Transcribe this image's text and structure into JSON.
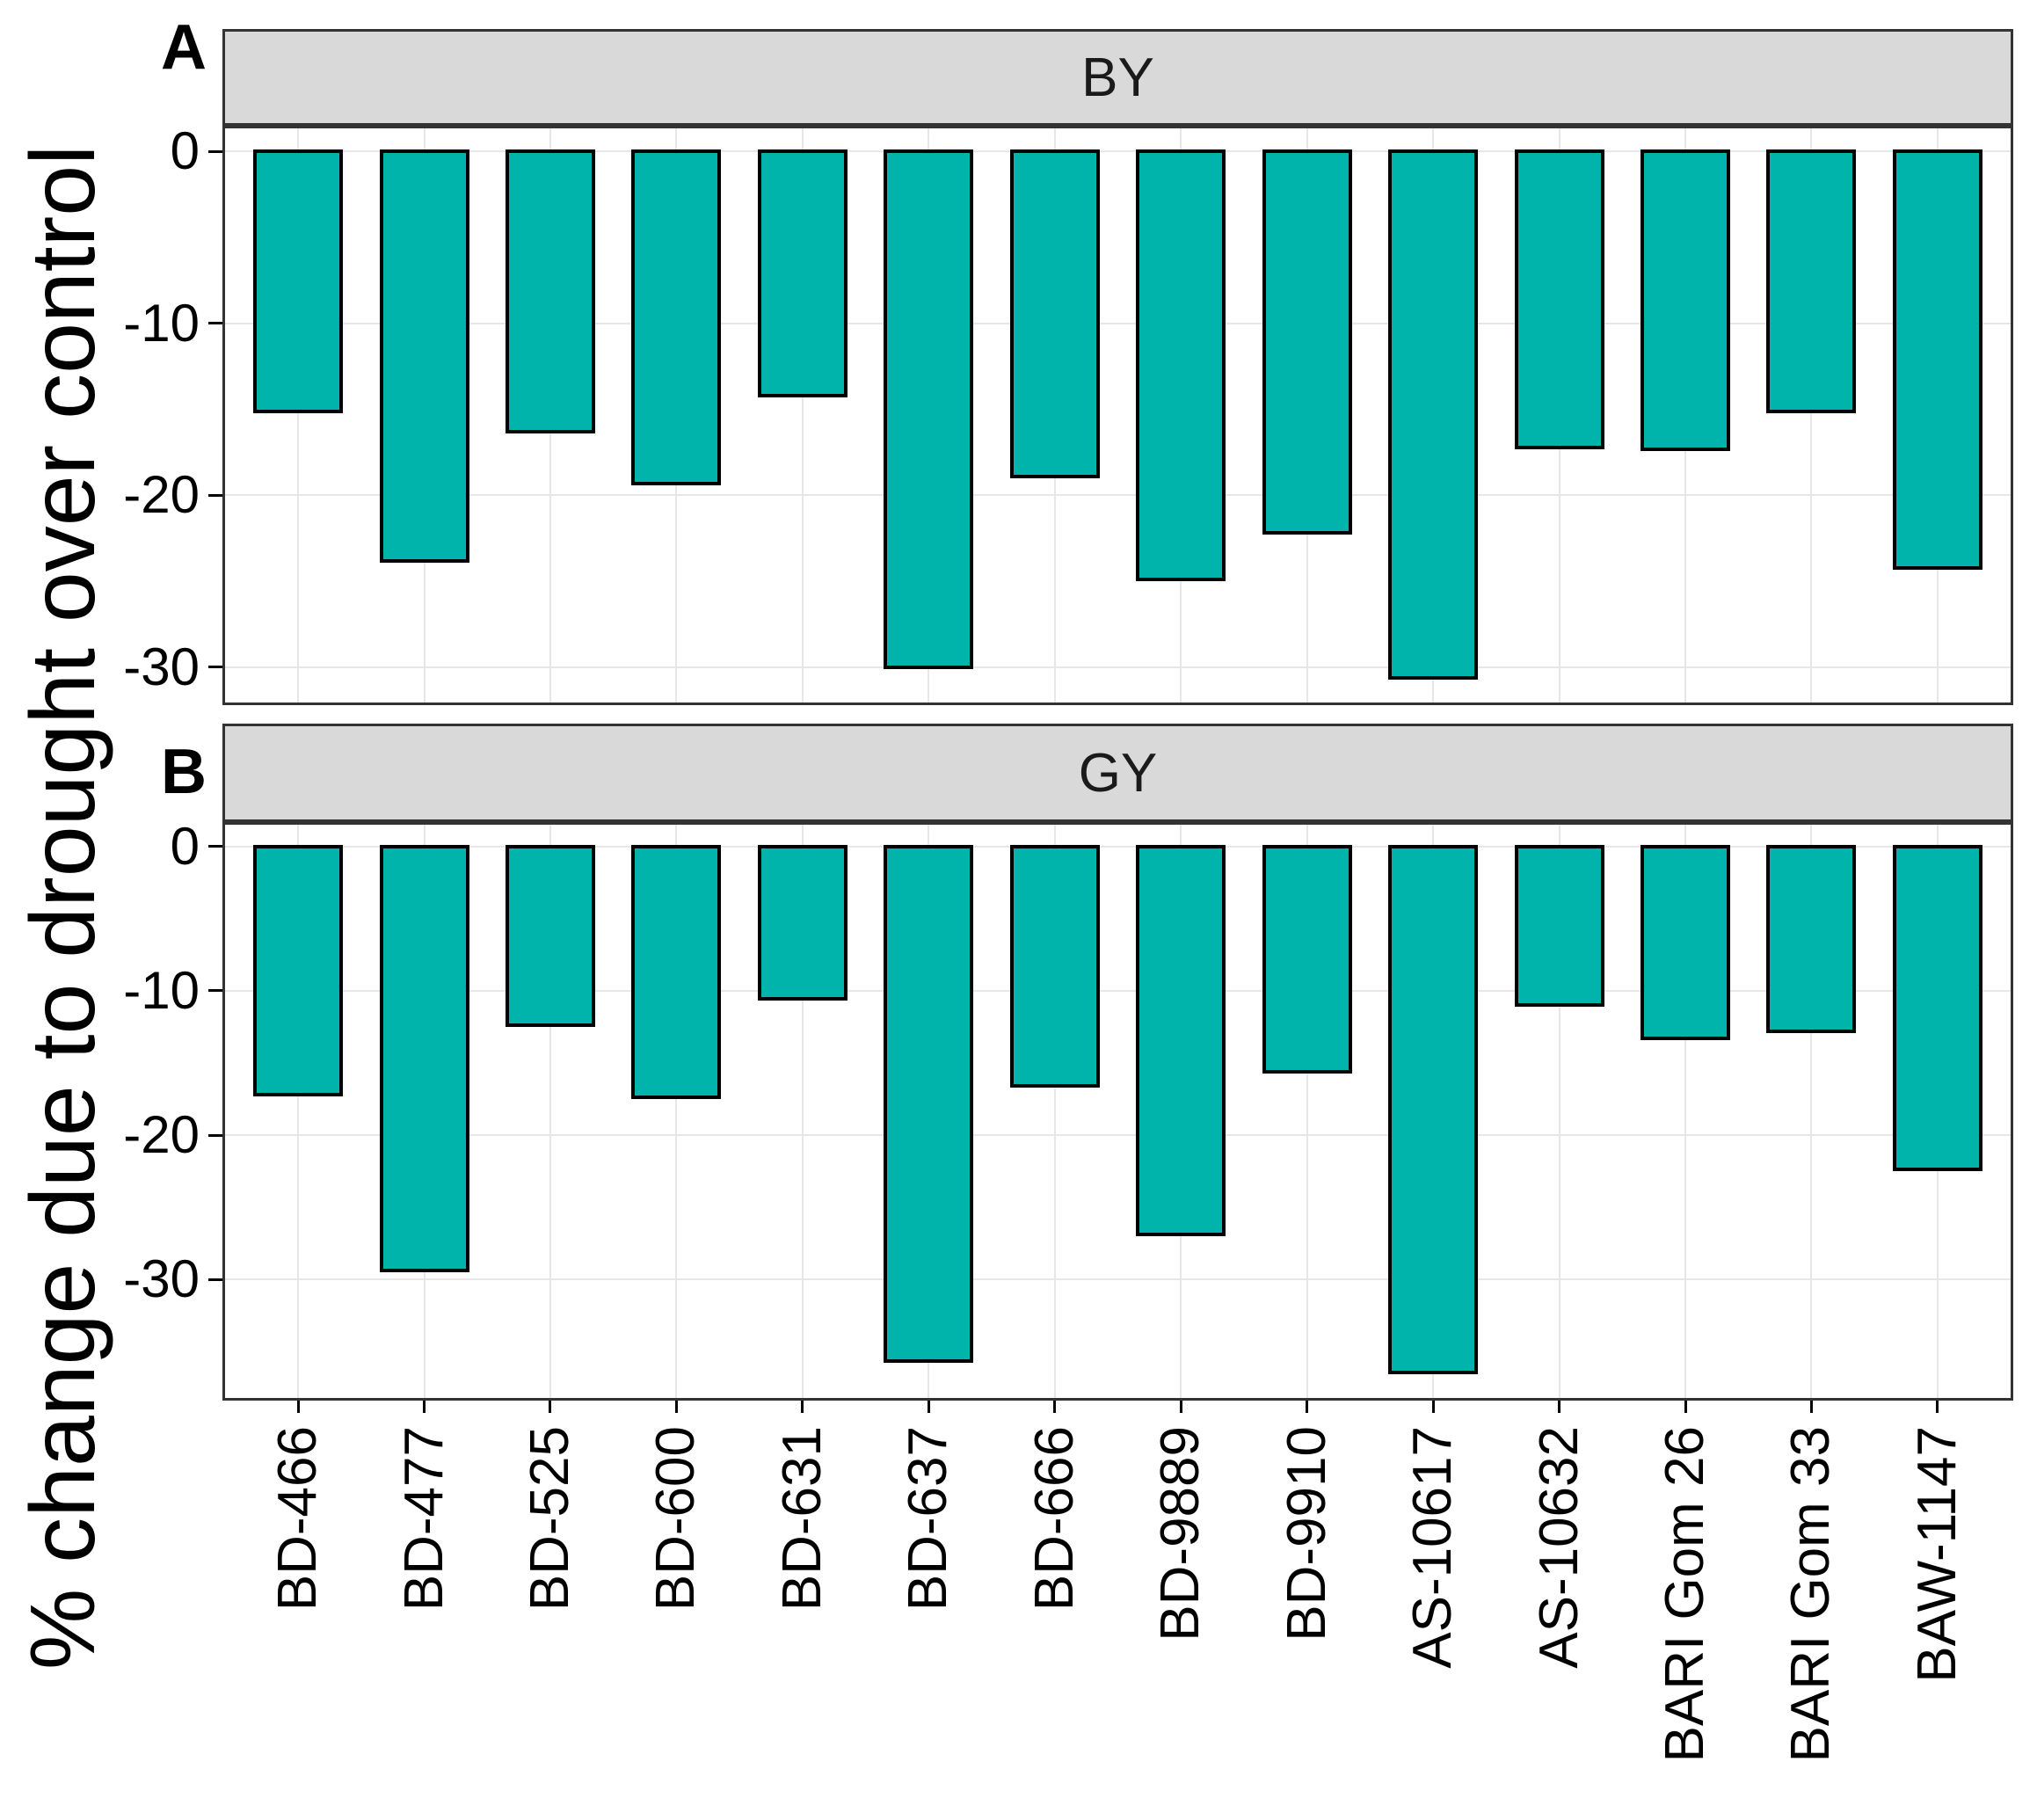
{
  "y_axis_title": "% change due to drought over control",
  "categories": [
    "BD-466",
    "BD-477",
    "BD-525",
    "BD-600",
    "BD-631",
    "BD-637",
    "BD-666",
    "BD-9889",
    "BD-9910",
    "AS-10617",
    "AS-10632",
    "BARI Gom 26",
    "BARI Gom 33",
    "BAW-1147"
  ],
  "y_ticks": [
    {
      "value": 0,
      "label": "0"
    },
    {
      "value": -10,
      "label": "-10"
    },
    {
      "value": -20,
      "label": "-20"
    },
    {
      "value": -30,
      "label": "-30"
    }
  ],
  "chart_data": [
    {
      "type": "bar",
      "panel_letter": "A",
      "strip_label": "BY",
      "xlabel": "",
      "ylabel": "% change due to drought over control",
      "ylim": [
        -32.2,
        1.5
      ],
      "grid": "on",
      "categories": [
        "BD-466",
        "BD-477",
        "BD-525",
        "BD-600",
        "BD-631",
        "BD-637",
        "BD-666",
        "BD-9889",
        "BD-9910",
        "AS-10617",
        "AS-10632",
        "BARI Gom 26",
        "BARI Gom 33",
        "BAW-1147"
      ],
      "values": [
        -15.2,
        -23.9,
        -16.4,
        -19.4,
        -14.3,
        -30.1,
        -19.0,
        -25.0,
        -22.3,
        -30.7,
        -17.3,
        -17.4,
        -15.2,
        -24.3
      ]
    },
    {
      "type": "bar",
      "panel_letter": "B",
      "strip_label": "GY",
      "xlabel": "",
      "ylabel": "% change due to drought over control",
      "ylim": [
        -38.4,
        1.7
      ],
      "grid": "on",
      "categories": [
        "BD-466",
        "BD-477",
        "BD-525",
        "BD-600",
        "BD-631",
        "BD-637",
        "BD-666",
        "BD-9889",
        "BD-9910",
        "AS-10617",
        "AS-10632",
        "BARI Gom 26",
        "BARI Gom 33",
        "BAW-1147"
      ],
      "values": [
        -17.3,
        -29.5,
        -12.5,
        -17.5,
        -10.7,
        -35.8,
        -16.7,
        -27.0,
        -15.7,
        -36.6,
        -11.1,
        -13.4,
        -12.9,
        -22.5
      ]
    }
  ],
  "colors": {
    "bar_fill": "#00b3ab",
    "bar_border": "#000000",
    "strip_bg": "#d9d9d9",
    "panel_border": "#333333",
    "gridline": "#e7e7e7",
    "text": "#000000"
  }
}
